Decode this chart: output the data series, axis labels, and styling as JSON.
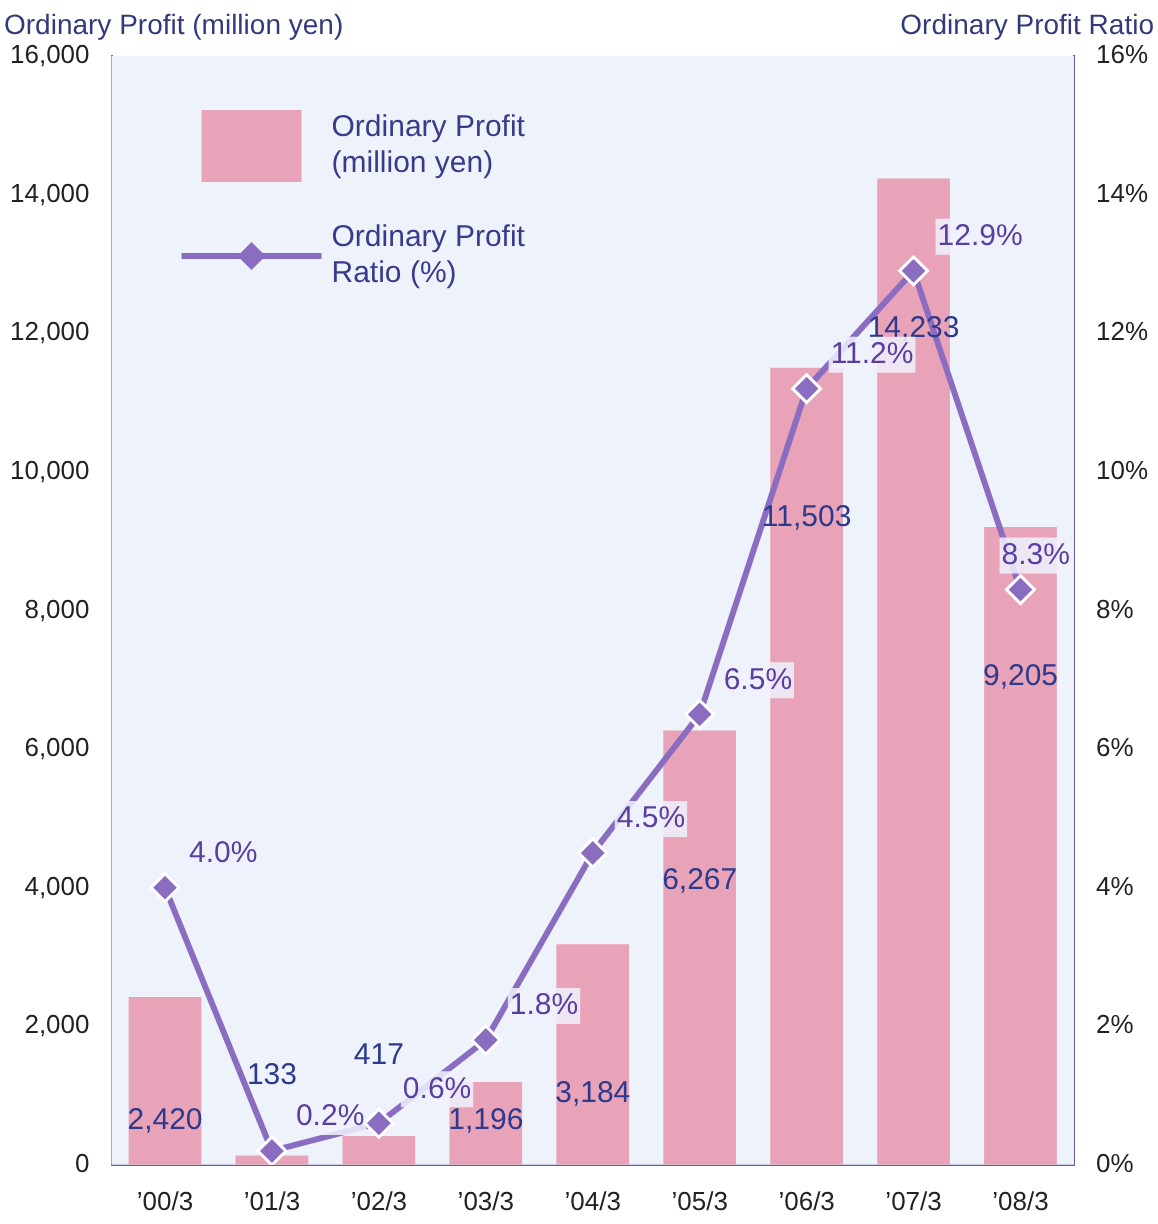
{
  "chart_data": {
    "type": "bar",
    "ylabel": "Ordinary Profit (million yen)",
    "y2label": "Ordinary Profit Ratio",
    "categories": [
      "’00/3",
      "’01/3",
      "’02/3",
      "’03/3",
      "’04/3",
      "’05/3",
      "’06/3",
      "’07/3",
      "’08/3"
    ],
    "series": [
      {
        "name": "Ordinary Profit (million yen)",
        "color": "#e8a3b8",
        "values": [
          2420,
          133,
          417,
          1196,
          3184,
          6267,
          11503,
          14233,
          9205
        ],
        "value_labels": [
          "2,420",
          "133",
          "417",
          "1,196",
          "3,184",
          "6,267",
          "11,503",
          "14,233",
          "9,205"
        ]
      },
      {
        "type": "line",
        "axis": "y2",
        "name": "Ordinary Profit Ratio (%)",
        "color": "#8a6cc0",
        "marker": "diamond",
        "values": [
          4.0,
          0.2,
          0.6,
          1.8,
          4.5,
          6.5,
          11.2,
          12.9,
          8.3
        ],
        "value_labels": [
          "4.0%",
          "0.2%",
          "0.6%",
          "1.8%",
          "4.5%",
          "6.5%",
          "11.2%",
          "12.9%",
          "8.3%"
        ]
      }
    ],
    "ylim": [
      0,
      16000
    ],
    "yticks": [
      {
        "value": 0,
        "label": "0"
      },
      {
        "value": 2000,
        "label": "2,000"
      },
      {
        "value": 4000,
        "label": "4,000"
      },
      {
        "value": 6000,
        "label": "6,000"
      },
      {
        "value": 8000,
        "label": "8,000"
      },
      {
        "value": 10000,
        "label": "10,000"
      },
      {
        "value": 12000,
        "label": "12,000"
      },
      {
        "value": 14000,
        "label": "14,000"
      },
      {
        "value": 16000,
        "label": "16,000"
      }
    ],
    "y2lim": [
      0,
      16
    ],
    "y2ticks": [
      {
        "value": 0,
        "label": "0%"
      },
      {
        "value": 2,
        "label": "2%"
      },
      {
        "value": 4,
        "label": "4%"
      },
      {
        "value": 6,
        "label": "6%"
      },
      {
        "value": 8,
        "label": "8%"
      },
      {
        "value": 10,
        "label": "10%"
      },
      {
        "value": 12,
        "label": "12%"
      },
      {
        "value": 14,
        "label": "14%"
      },
      {
        "value": 16,
        "label": "16%"
      }
    ],
    "legend": "top left"
  }
}
